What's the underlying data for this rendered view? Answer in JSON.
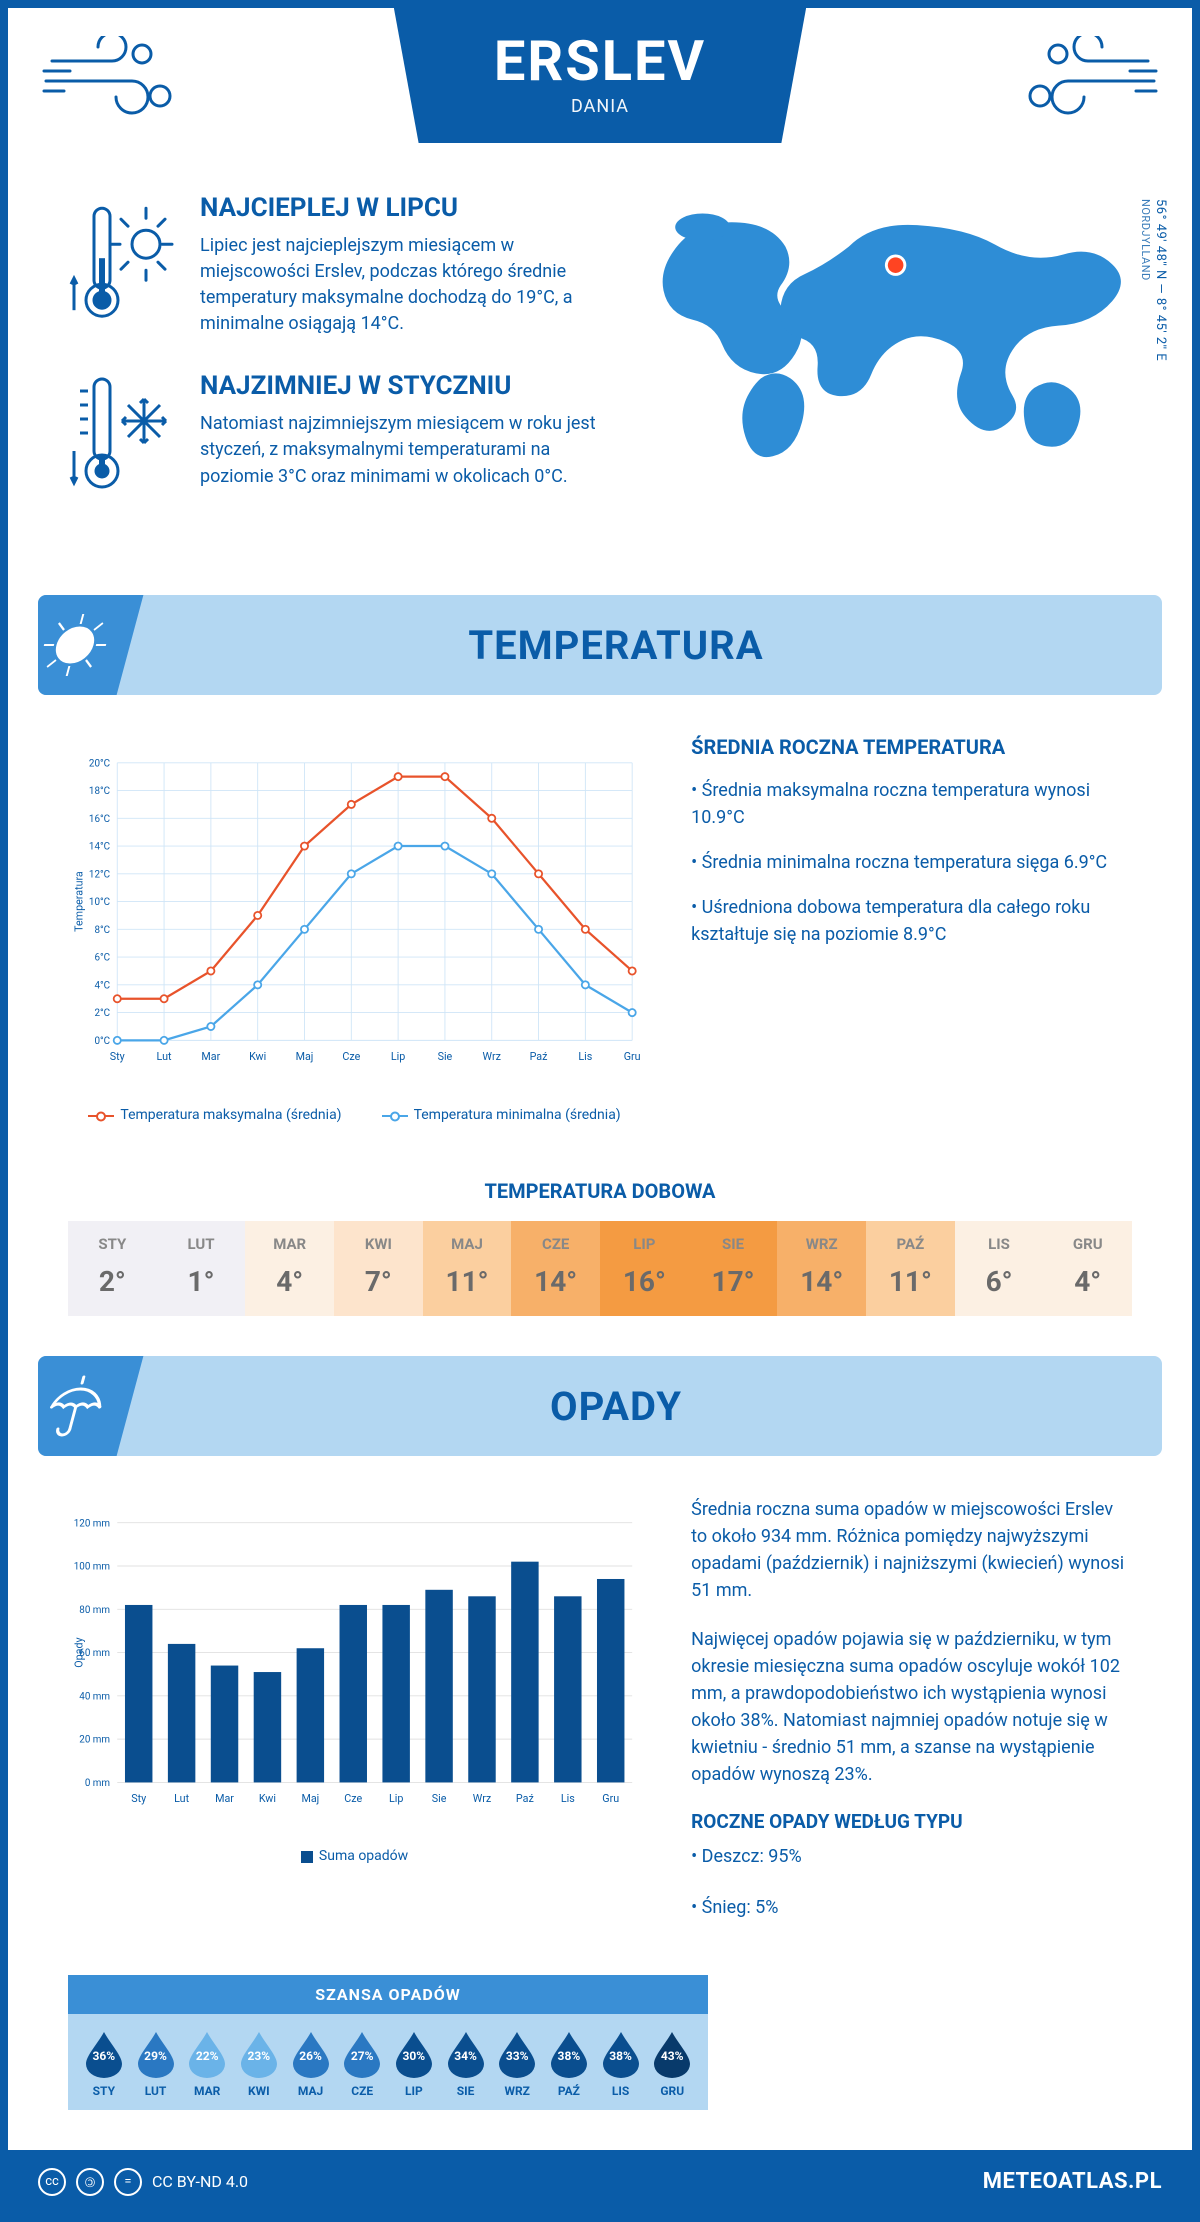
{
  "header": {
    "city": "ERSLEV",
    "country": "DANIA",
    "coords": "56° 49' 48'' N — 8° 45' 2'' E",
    "region": "NORDJYLLAND"
  },
  "warm": {
    "title": "NAJCIEPLEJ W LIPCU",
    "text": "Lipiec jest najcieplejszym miesiącem w miejscowości Erslev, podczas którego średnie temperatury maksymalne dochodzą do 19°C, a minimalne osiągają 14°C."
  },
  "cold": {
    "title": "NAJZIMNIEJ W STYCZNIU",
    "text": "Natomiast najzimniejszym miesiącem w roku jest styczeń, z maksymalnymi temperaturami na poziomie 3°C oraz minimami w okolicach 0°C."
  },
  "sections": {
    "temperature": "TEMPERATURA",
    "precip": "OPADY"
  },
  "temp_chart": {
    "type": "line",
    "months": [
      "Sty",
      "Lut",
      "Mar",
      "Kwi",
      "Maj",
      "Cze",
      "Lip",
      "Sie",
      "Wrz",
      "Paź",
      "Lis",
      "Gru"
    ],
    "series_max": [
      3,
      3,
      5,
      9,
      14,
      17,
      19,
      19,
      16,
      12,
      8,
      5
    ],
    "series_min": [
      0,
      0,
      1,
      4,
      8,
      12,
      14,
      14,
      12,
      8,
      4,
      2
    ],
    "y_label": "Temperatura",
    "y_min": 0,
    "y_max": 20,
    "y_step": 2,
    "max_color": "#e8532b",
    "min_color": "#4aa6e8",
    "grid_color": "#cfe5f7",
    "legend_max": "Temperatura maksymalna (średnia)",
    "legend_min": "Temperatura minimalna (średnia)"
  },
  "temp_side": {
    "title": "ŚREDNIA ROCZNA TEMPERATURA",
    "b1": "• Średnia maksymalna roczna temperatura wynosi 10.9°C",
    "b2": "• Średnia minimalna roczna temperatura sięga 6.9°C",
    "b3": "• Uśredniona dobowa temperatura dla całego roku kształtuje się na poziomie 8.9°C"
  },
  "daily": {
    "title": "TEMPERATURA DOBOWA",
    "months": [
      "STY",
      "LUT",
      "MAR",
      "KWI",
      "MAJ",
      "CZE",
      "LIP",
      "SIE",
      "WRZ",
      "PAŹ",
      "LIS",
      "GRU"
    ],
    "values": [
      "2°",
      "1°",
      "4°",
      "7°",
      "11°",
      "14°",
      "16°",
      "17°",
      "14°",
      "11°",
      "6°",
      "4°"
    ],
    "colors": [
      "#f1f0f5",
      "#f1f0f5",
      "#fcf0e3",
      "#fde4cc",
      "#fbcf9f",
      "#f7b069",
      "#f49b42",
      "#f49b42",
      "#f7b069",
      "#fbcf9f",
      "#fcf0e3",
      "#fcf0e3"
    ]
  },
  "precip_chart": {
    "type": "bar",
    "months": [
      "Sty",
      "Lut",
      "Mar",
      "Kwi",
      "Maj",
      "Cze",
      "Lip",
      "Sie",
      "Wrz",
      "Paź",
      "Lis",
      "Gru"
    ],
    "values": [
      82,
      64,
      54,
      51,
      62,
      82,
      82,
      89,
      86,
      102,
      86,
      94
    ],
    "y_label": "Opady",
    "y_min": 0,
    "y_max": 120,
    "y_step": 20,
    "bar_color": "#0a4e8f",
    "grid_color": "#e0e0e0",
    "legend": "Suma opadów"
  },
  "precip_side": {
    "p1": "Średnia roczna suma opadów w miejscowości Erslev to około 934 mm. Różnica pomiędzy najwyższymi opadami (październik) i najniższymi (kwiecień) wynosi 51 mm.",
    "p2": "Najwięcej opadów pojawia się w październiku, w tym okresie miesięczna suma opadów oscyluje wokół 102 mm, a prawdopodobieństwo ich wystąpienia wynosi około 38%. Natomiast najmniej opadów notuje się w kwietniu - średnio 51 mm, a szanse na wystąpienie opadów wynoszą 23%."
  },
  "chance": {
    "title": "SZANSA OPADÓW",
    "months": [
      "STY",
      "LUT",
      "MAR",
      "KWI",
      "MAJ",
      "CZE",
      "LIP",
      "SIE",
      "WRZ",
      "PAŹ",
      "LIS",
      "GRU"
    ],
    "percents": [
      "36%",
      "29%",
      "22%",
      "23%",
      "26%",
      "27%",
      "30%",
      "34%",
      "33%",
      "38%",
      "38%",
      "43%"
    ],
    "drop_colors": [
      "#0a4e8f",
      "#2a78c2",
      "#6ab3e8",
      "#6ab3e8",
      "#2a78c2",
      "#2a78c2",
      "#0a4e8f",
      "#0a4e8f",
      "#0a4e8f",
      "#0a4e8f",
      "#0a4e8f",
      "#083a6b"
    ]
  },
  "precip_type": {
    "title": "ROCZNE OPADY WEDŁUG TYPU",
    "rain": "• Deszcz: 95%",
    "snow": "• Śnieg: 5%"
  },
  "footer": {
    "license": "CC BY-ND 4.0",
    "site": "METEOATLAS.PL"
  },
  "colors": {
    "brand": "#0a5ca8",
    "panel": "#b3d7f2",
    "stripe": "#3a8fd6"
  }
}
